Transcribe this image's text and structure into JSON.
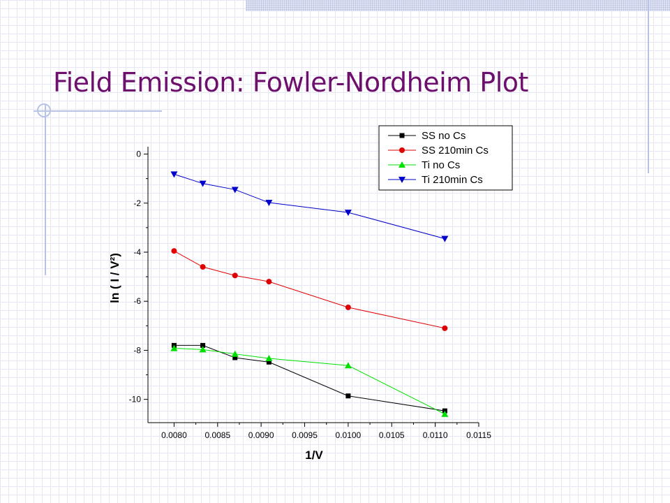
{
  "slide": {
    "title": "Field Emission: Fowler-Nordheim Plot"
  },
  "chart_data": {
    "type": "line",
    "xlabel": "1/V",
    "ylabel": "ln ( I / V²)",
    "xlim": [
      0.0077,
      0.0115
    ],
    "ylim": [
      -10.95,
      0.3
    ],
    "x_ticks": [
      "0.0080",
      "0.0085",
      "0.0090",
      "0.0095",
      "0.0100",
      "0.0105",
      "0.0110",
      "0.0115"
    ],
    "y_ticks": [
      "0",
      "-2",
      "-4",
      "-6",
      "-8",
      "-10"
    ],
    "legend_position": "top-right",
    "series": [
      {
        "name": "SS no Cs",
        "color": "#000000",
        "marker": "square",
        "x": [
          0.008,
          0.00833,
          0.0087,
          0.00909,
          0.01,
          0.01111
        ],
        "y": [
          -7.8,
          -7.8,
          -8.3,
          -8.48,
          -9.86,
          -10.47
        ]
      },
      {
        "name": "SS 210min Cs",
        "color": "#e00000",
        "marker": "circle",
        "x": [
          0.008,
          0.00833,
          0.0087,
          0.00909,
          0.01,
          0.01111
        ],
        "y": [
          -3.95,
          -4.6,
          -4.95,
          -5.2,
          -6.25,
          -7.1
        ]
      },
      {
        "name": "Ti no Cs",
        "color": "#00e000",
        "marker": "triangle-up",
        "x": [
          0.008,
          0.00833,
          0.0087,
          0.00909,
          0.01,
          0.01111
        ],
        "y": [
          -7.92,
          -7.97,
          -8.15,
          -8.33,
          -8.62,
          -10.6
        ]
      },
      {
        "name": "Ti 210min Cs",
        "color": "#0000cc",
        "marker": "triangle-down",
        "x": [
          0.008,
          0.00833,
          0.0087,
          0.00909,
          0.01,
          0.01111
        ],
        "y": [
          -0.82,
          -1.2,
          -1.45,
          -1.98,
          -2.38,
          -3.45
        ]
      }
    ]
  }
}
